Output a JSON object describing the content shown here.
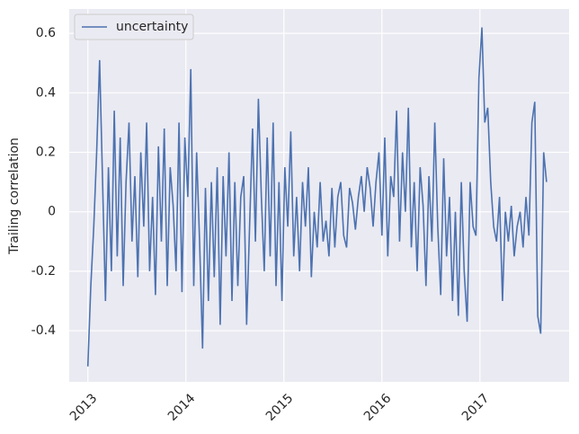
{
  "chart_data": {
    "type": "line",
    "ylabel": "Trailing correlation",
    "x": [
      2013,
      2013.03,
      2013.06,
      2013.09,
      2013.12,
      2013.15,
      2013.18,
      2013.21,
      2013.24,
      2013.27,
      2013.3,
      2013.33,
      2013.36,
      2013.39,
      2013.42,
      2013.45,
      2013.48,
      2013.51,
      2013.54,
      2013.57,
      2013.6,
      2013.63,
      2013.66,
      2013.69,
      2013.72,
      2013.75,
      2013.78,
      2013.81,
      2013.84,
      2013.87,
      2013.9,
      2013.93,
      2013.96,
      2013.99,
      2014.02,
      2014.05,
      2014.08,
      2014.11,
      2014.14,
      2014.17,
      2014.2,
      2014.23,
      2014.26,
      2014.29,
      2014.32,
      2014.35,
      2014.38,
      2014.41,
      2014.44,
      2014.47,
      2014.5,
      2014.53,
      2014.56,
      2014.59,
      2014.62,
      2014.65,
      2014.68,
      2014.71,
      2014.74,
      2014.77,
      2014.8,
      2014.83,
      2014.86,
      2014.89,
      2014.92,
      2014.95,
      2014.98,
      2015.01,
      2015.04,
      2015.07,
      2015.1,
      2015.13,
      2015.16,
      2015.19,
      2015.22,
      2015.25,
      2015.28,
      2015.31,
      2015.34,
      2015.37,
      2015.4,
      2015.43,
      2015.46,
      2015.49,
      2015.52,
      2015.55,
      2015.58,
      2015.61,
      2015.64,
      2015.67,
      2015.7,
      2015.73,
      2015.76,
      2015.79,
      2015.82,
      2015.85,
      2015.88,
      2015.91,
      2015.94,
      2015.97,
      2016,
      2016.03,
      2016.06,
      2016.09,
      2016.12,
      2016.15,
      2016.18,
      2016.21,
      2016.24,
      2016.27,
      2016.3,
      2016.33,
      2016.36,
      2016.39,
      2016.42,
      2016.45,
      2016.48,
      2016.51,
      2016.54,
      2016.57,
      2016.6,
      2016.63,
      2016.66,
      2016.69,
      2016.72,
      2016.75,
      2016.78,
      2016.81,
      2016.84,
      2016.87,
      2016.9,
      2016.93,
      2016.96,
      2016.99,
      2017.02,
      2017.05,
      2017.08,
      2017.11,
      2017.14,
      2017.17,
      2017.2,
      2017.23,
      2017.26,
      2017.29,
      2017.32,
      2017.35,
      2017.38,
      2017.41,
      2017.44,
      2017.47,
      2017.5,
      2017.53,
      2017.56,
      2017.59,
      2017.62,
      2017.65,
      2017.68
    ],
    "series": [
      {
        "name": "uncertainty",
        "color": "#4c72b0",
        "values": [
          -0.52,
          -0.25,
          -0.05,
          0.2,
          0.51,
          0.1,
          -0.3,
          0.15,
          -0.2,
          0.34,
          -0.15,
          0.25,
          -0.25,
          0.1,
          0.3,
          -0.1,
          0.12,
          -0.22,
          0.2,
          -0.05,
          0.3,
          -0.2,
          0.05,
          -0.28,
          0.22,
          -0.1,
          0.28,
          -0.25,
          0.15,
          0.02,
          -0.2,
          0.3,
          -0.27,
          0.25,
          0.05,
          0.48,
          -0.25,
          0.2,
          -0.1,
          -0.46,
          0.08,
          -0.3,
          0.1,
          -0.22,
          0.15,
          -0.38,
          0.12,
          -0.15,
          0.2,
          -0.3,
          0.1,
          -0.25,
          0.05,
          0.12,
          -0.38,
          -0.05,
          0.28,
          -0.1,
          0.38,
          0.05,
          -0.2,
          0.25,
          -0.15,
          0.3,
          -0.25,
          0.1,
          -0.3,
          0.15,
          -0.05,
          0.27,
          -0.15,
          0.05,
          -0.2,
          0.1,
          -0.05,
          0.15,
          -0.22,
          0,
          -0.12,
          0.1,
          -0.1,
          -0.03,
          -0.15,
          0.08,
          -0.12,
          0.05,
          0.1,
          -0.08,
          -0.12,
          0.08,
          0.03,
          -0.06,
          0.05,
          0.12,
          0,
          0.15,
          0.08,
          -0.05,
          0.1,
          0.2,
          -0.08,
          0.25,
          -0.15,
          0.12,
          0.05,
          0.34,
          -0.1,
          0.2,
          0,
          0.35,
          -0.12,
          0.1,
          -0.2,
          0.15,
          0.02,
          -0.25,
          0.12,
          -0.1,
          0.3,
          -0.05,
          -0.28,
          0.18,
          -0.15,
          0.05,
          -0.3,
          0,
          -0.35,
          0.1,
          -0.2,
          -0.37,
          0.1,
          -0.05,
          -0.08,
          0.45,
          0.62,
          0.3,
          0.35,
          0.1,
          -0.05,
          -0.1,
          0.05,
          -0.3,
          0,
          -0.1,
          0.02,
          -0.15,
          -0.05,
          0,
          -0.12,
          0.05,
          -0.08,
          0.3,
          0.37,
          -0.35,
          -0.41,
          0.2,
          0.1
        ]
      }
    ],
    "xlim": [
      2012.81,
      2017.91
    ],
    "xticks": [
      2013,
      2014,
      2015,
      2016,
      2017
    ],
    "ylim": [
      -0.572,
      0.682
    ],
    "yticks": [
      -0.4,
      -0.2,
      0.0,
      0.2,
      0.4,
      0.6
    ],
    "grid": true,
    "legend": "upper left"
  }
}
